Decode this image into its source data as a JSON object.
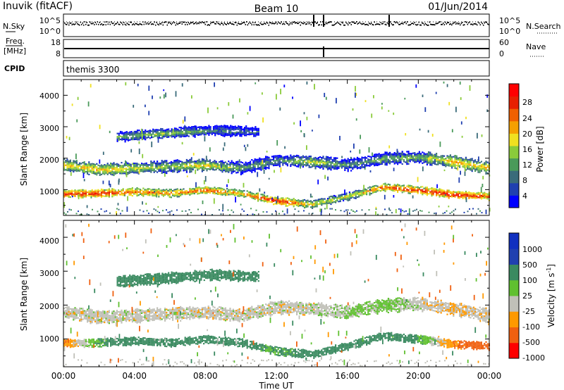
{
  "header": {
    "station": "Inuvik (fitACF)",
    "beam": "Beam 10",
    "date": "01/Jun/2014"
  },
  "noise_panel": {
    "left_label": "N.Sky",
    "right_label": "N.Search",
    "left_ticks": [
      "10^5",
      "10^0"
    ],
    "right_ticks": [
      "10^5",
      "10^0"
    ]
  },
  "freq_panel": {
    "left_label_1": "Freq.",
    "left_label_2": "[MHz]",
    "right_label": "Nave",
    "left_ticks": [
      "18",
      "8"
    ],
    "right_ticks": [
      "60",
      "0"
    ]
  },
  "cpid_panel": {
    "label": "CPID",
    "program": "themis 3300"
  },
  "x_axis": {
    "ticks": [
      "00:00",
      "04:00",
      "08:00",
      "12:00",
      "16:00",
      "20:00",
      "00:00"
    ],
    "label": "Time UT"
  },
  "power_panel": {
    "ylabel": "Slant Range [km]",
    "yticks": [
      "4000",
      "3000",
      "2000",
      "1000"
    ],
    "colorbar_label": "Power [dB]",
    "colorbar_ticks": [
      "28",
      "24",
      "20",
      "16",
      "12",
      "8",
      "4"
    ]
  },
  "velocity_panel": {
    "ylabel": "Slant Range [km]",
    "yticks": [
      "4000",
      "3000",
      "2000",
      "1000"
    ],
    "colorbar_label": "Velocity [m s",
    "colorbar_label_sup": "-1",
    "colorbar_label_end": "]",
    "colorbar_ticks": [
      "1000",
      "500",
      "100",
      "25",
      "-25",
      "-100",
      "-500",
      "-1000"
    ]
  },
  "colors": {
    "power_scale": [
      "#0000ff",
      "#2040b0",
      "#3a6b7a",
      "#4a9a5a",
      "#8acb3a",
      "#f0e020",
      "#f5a000",
      "#f06000",
      "#e82000",
      "#ff0000"
    ],
    "velocity_scale": [
      "#ff0000",
      "#f06010",
      "#ff9900",
      "#c0c0b8",
      "#60c030",
      "#3a8a60",
      "#2040b0",
      "#1030c0"
    ]
  },
  "chart_data": [
    {
      "type": "heatmap",
      "title": "Power",
      "x_range_hours": [
        0,
        24
      ],
      "y_range_km": [
        180,
        4500
      ],
      "value_units": "dB",
      "value_range": [
        0,
        30
      ],
      "bands": [
        {
          "name": "near",
          "x_start": 0,
          "x_end": 24,
          "center_km": [
            880,
            900,
            950,
            900,
            1000,
            900,
            650,
            550,
            800,
            1100,
            1000,
            850,
            800
          ],
          "thickness_km": 220,
          "power_dB": [
            26,
            27,
            24,
            22,
            25,
            20,
            28,
            18,
            16,
            24,
            26,
            28,
            25
          ]
        },
        {
          "name": "far",
          "x_start": 0,
          "x_end": 24,
          "center_km": [
            1800,
            1650,
            1700,
            1750,
            1800,
            1700,
            1950,
            1900,
            1800,
            2000,
            2050,
            1900,
            1700
          ],
          "thickness_km": 350,
          "power_dB": [
            18,
            20,
            16,
            14,
            18,
            12,
            10,
            16,
            10,
            12,
            14,
            20,
            18
          ]
        },
        {
          "name": "high-range",
          "x_start": 3,
          "x_end": 11,
          "center_km": [
            2700,
            2800,
            2900,
            2850
          ],
          "thickness_km": 300,
          "power_dB": [
            12,
            14,
            10,
            8
          ]
        }
      ]
    },
    {
      "type": "heatmap",
      "title": "Velocity",
      "x_range_hours": [
        0,
        24
      ],
      "y_range_km": [
        180,
        4500
      ],
      "value_units": "m s^-1",
      "value_range": [
        -1000,
        1000
      ],
      "bands": [
        {
          "name": "near",
          "x_start": 0,
          "x_end": 24,
          "center_km": [
            880,
            900,
            950,
            900,
            1000,
            900,
            650,
            550,
            800,
            1100,
            1000,
            850,
            800
          ],
          "thickness_km": 220,
          "velocity": [
            -100,
            100,
            200,
            200,
            200,
            150,
            100,
            150,
            300,
            300,
            100,
            -100,
            -200
          ]
        },
        {
          "name": "far",
          "x_start": 0,
          "x_end": 24,
          "center_km": [
            1800,
            1650,
            1700,
            1750,
            1800,
            1700,
            1950,
            1900,
            1800,
            2000,
            2050,
            1900,
            1700
          ],
          "thickness_km": 350,
          "velocity": [
            0,
            0,
            0,
            0,
            0,
            0,
            0,
            0,
            25,
            50,
            0,
            -25,
            0
          ]
        },
        {
          "name": "high-range",
          "x_start": 3,
          "x_end": 11,
          "center_km": [
            2700,
            2800,
            2900,
            2850
          ],
          "thickness_km": 300,
          "velocity": [
            200,
            250,
            200,
            150
          ]
        }
      ]
    }
  ]
}
